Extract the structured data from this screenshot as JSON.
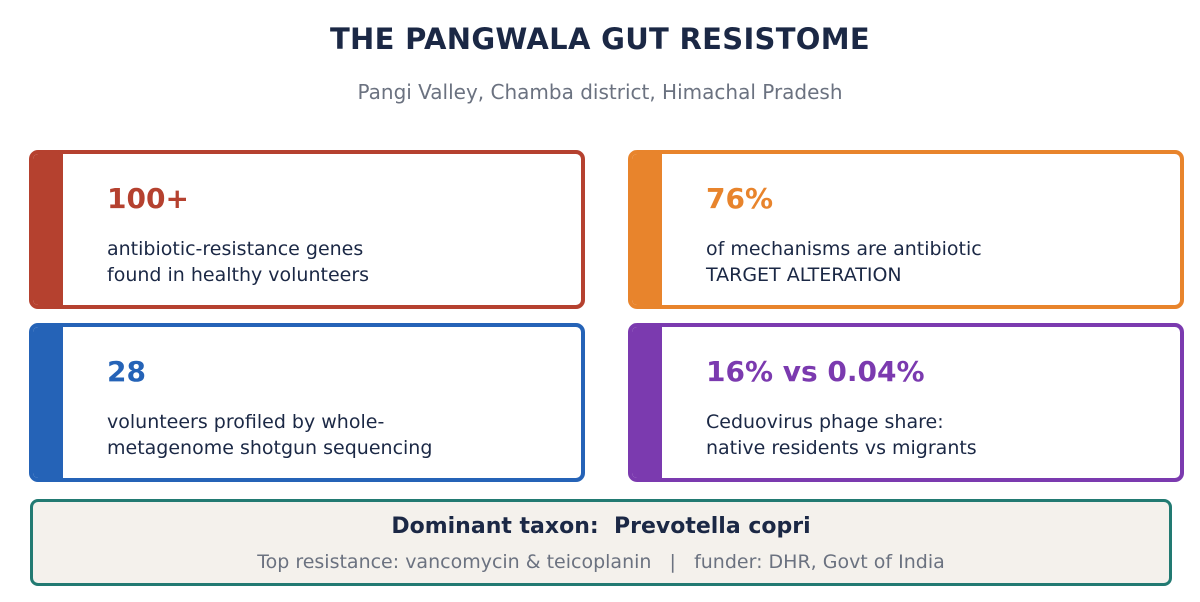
{
  "header": {
    "title": "THE PANGWALA GUT RESISTOME",
    "subtitle": "Pangi Valley, Chamba district, Himachal Pradesh"
  },
  "cards": [
    {
      "stat": "100+",
      "desc_line1": "antibiotic-resistance genes",
      "desc_line2": "found in healthy volunteers",
      "color": "#b5412f"
    },
    {
      "stat": "76%",
      "desc_line1": "of mechanisms are antibiotic",
      "desc_line2": "TARGET ALTERATION",
      "color": "#e8842c"
    },
    {
      "stat": "28",
      "desc_line1": "volunteers profiled by whole-",
      "desc_line2": "metagenome shotgun sequencing",
      "color": "#2563b7"
    },
    {
      "stat": "16% vs 0.04%",
      "desc_line1": "Ceduovirus phage share:",
      "desc_line2": "native residents vs migrants",
      "color": "#7b3aaf"
    }
  ],
  "footer": {
    "taxon": "Dominant taxon:  Prevotella copri",
    "info": "Top resistance: vancomycin & teicoplanin   |   funder: DHR, Govt of India",
    "border_color": "#227a72",
    "background": "#f4f1ec"
  }
}
